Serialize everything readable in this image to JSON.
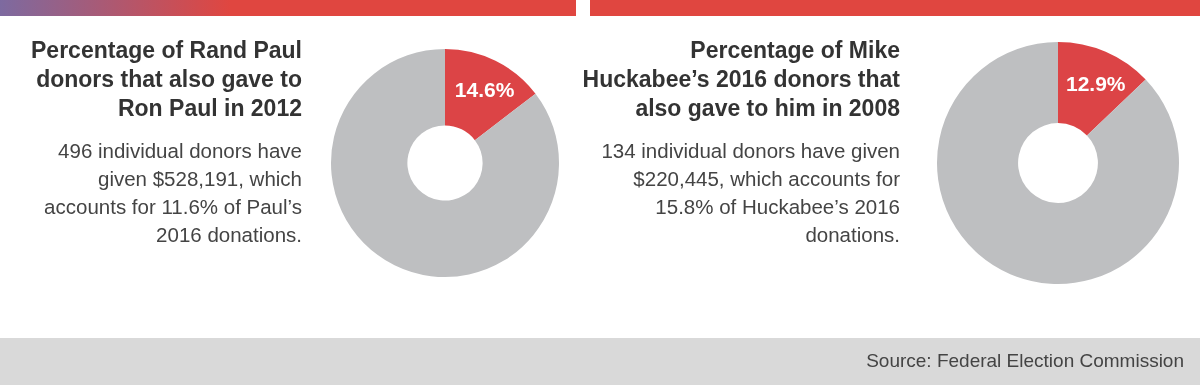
{
  "chart_data": [
    {
      "type": "donut",
      "title": "Percentage of Rand Paul donors that also gave to Ron Paul in 2012",
      "subtitle": "496 individual donors have given $528,191, which accounts for 11.6% of Paul’s 2016 donations.",
      "categories": [
        null,
        null
      ],
      "values": [
        14.6,
        85.4
      ],
      "colors": [
        "#dc4446",
        "#bebfc1"
      ],
      "value_labels": [
        "14.6%",
        null
      ]
    },
    {
      "type": "donut",
      "title": "Percentage of Mike Huckabee’s 2016 donors that also gave to him in 2008",
      "subtitle": "134 individual donors have given $220,445, which accounts for 15.8% of Huckabee’s 2016 donations.",
      "categories": [
        null,
        null
      ],
      "values": [
        12.9,
        87.1
      ],
      "colors": [
        "#dc4446",
        "#bebfc1"
      ],
      "value_labels": [
        "12.9%",
        null
      ],
      "annotations": [
        "Source: Federal Election Commission"
      ]
    }
  ]
}
